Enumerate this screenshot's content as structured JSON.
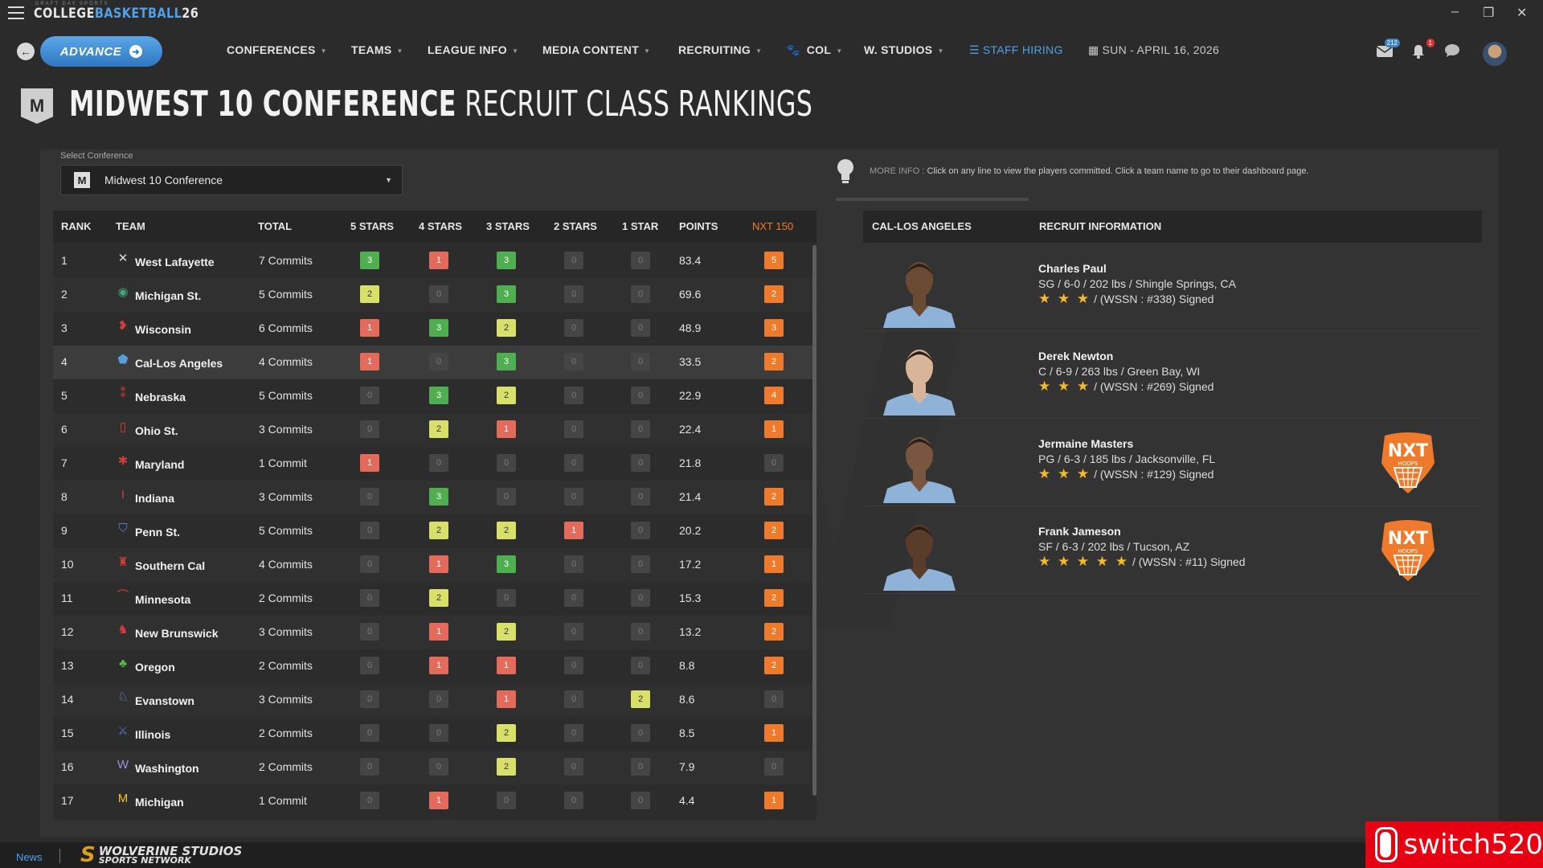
{
  "app": {
    "logo_main": "COLLEGE",
    "logo_accent": "BASKETBALL",
    "logo_year": "26",
    "logo_sub": "DRAFT DAY SPORTS"
  },
  "nav": {
    "advance_label": "ADVANCE",
    "items": [
      "CONFERENCES",
      "TEAMS",
      "LEAGUE INFO",
      "MEDIA CONTENT",
      "RECRUITING",
      "COL",
      "W. STUDIOS"
    ],
    "staff_hiring": "STAFF HIRING",
    "date": "SUN - APRIL 16, 2026",
    "mail_count": "212",
    "notif_count": "1"
  },
  "page": {
    "title_bold": "MIDWEST 10 CONFERENCE",
    "title_light": "RECRUIT CLASS RANKINGS",
    "conf_logo": "M"
  },
  "select": {
    "label": "Select Conference",
    "value": "Midwest 10 Conference"
  },
  "info": {
    "label": "MORE INFO :",
    "text": "Click on any line to view the players committed. Click a team name to go to their dashboard page."
  },
  "table": {
    "headers": [
      "RANK",
      "TEAM",
      "TOTAL",
      "5 STARS",
      "4 STARS",
      "3 STARS",
      "2 STARS",
      "1 STAR",
      "POINTS",
      "NXT 150"
    ],
    "rows": [
      {
        "rank": "1",
        "icon": "✕",
        "icolor": "#d8d8d8",
        "team": "West Lafayette",
        "total": "7 Commits",
        "s5": 3,
        "s4": 1,
        "s3": 3,
        "s2": 0,
        "s1": 0,
        "points": "83.4",
        "nxt": 5
      },
      {
        "rank": "2",
        "icon": "◉",
        "icolor": "#3fa57a",
        "team": "Michigan St.",
        "total": "5 Commits",
        "s5": 2,
        "s4": 0,
        "s3": 3,
        "s2": 0,
        "s1": 0,
        "points": "69.6",
        "nxt": 2
      },
      {
        "rank": "3",
        "icon": "❥",
        "icolor": "#d23b3b",
        "team": "Wisconsin",
        "total": "6 Commits",
        "s5": 1,
        "s4": 3,
        "s3": 2,
        "s2": 0,
        "s1": 0,
        "points": "48.9",
        "nxt": 3
      },
      {
        "rank": "4",
        "icon": "⬟",
        "icolor": "#5a9fdc",
        "team": "Cal-Los Angeles",
        "total": "4 Commits",
        "s5": 1,
        "s4": 0,
        "s3": 3,
        "s2": 0,
        "s1": 0,
        "points": "33.5",
        "nxt": 2
      },
      {
        "rank": "5",
        "icon": "⁑",
        "icolor": "#d23b3b",
        "team": "Nebraska",
        "total": "5 Commits",
        "s5": 0,
        "s4": 3,
        "s3": 2,
        "s2": 0,
        "s1": 0,
        "points": "22.9",
        "nxt": 4
      },
      {
        "rank": "6",
        "icon": "▯",
        "icolor": "#d23b3b",
        "team": "Ohio St.",
        "total": "3 Commits",
        "s5": 0,
        "s4": 2,
        "s3": 1,
        "s2": 0,
        "s1": 0,
        "points": "22.4",
        "nxt": 1
      },
      {
        "rank": "7",
        "icon": "✱",
        "icolor": "#d23b3b",
        "team": "Maryland",
        "total": "1 Commit",
        "s5": 1,
        "s4": 0,
        "s3": 0,
        "s2": 0,
        "s1": 0,
        "points": "21.8",
        "nxt": 0
      },
      {
        "rank": "8",
        "icon": "I",
        "icolor": "#d23b3b",
        "team": "Indiana",
        "total": "3 Commits",
        "s5": 0,
        "s4": 3,
        "s3": 0,
        "s2": 0,
        "s1": 0,
        "points": "21.4",
        "nxt": 2
      },
      {
        "rank": "9",
        "icon": "⛉",
        "icolor": "#4f7fd8",
        "team": "Penn St.",
        "total": "5 Commits",
        "s5": 0,
        "s4": 2,
        "s3": 2,
        "s2": 1,
        "s1": 0,
        "points": "20.2",
        "nxt": 2
      },
      {
        "rank": "10",
        "icon": "♜",
        "icolor": "#d23b3b",
        "team": "Southern Cal",
        "total": "4 Commits",
        "s5": 0,
        "s4": 1,
        "s3": 3,
        "s2": 0,
        "s1": 0,
        "points": "17.2",
        "nxt": 1
      },
      {
        "rank": "11",
        "icon": "⌒",
        "icolor": "#d23b3b",
        "team": "Minnesota",
        "total": "2 Commits",
        "s5": 0,
        "s4": 2,
        "s3": 0,
        "s2": 0,
        "s1": 0,
        "points": "15.3",
        "nxt": 2
      },
      {
        "rank": "12",
        "icon": "♞",
        "icolor": "#d23b3b",
        "team": "New Brunswick",
        "total": "3 Commits",
        "s5": 0,
        "s4": 1,
        "s3": 2,
        "s2": 0,
        "s1": 0,
        "points": "13.2",
        "nxt": 2
      },
      {
        "rank": "13",
        "icon": "♣",
        "icolor": "#5cb34f",
        "team": "Oregon",
        "total": "2 Commits",
        "s5": 0,
        "s4": 1,
        "s3": 1,
        "s2": 0,
        "s1": 0,
        "points": "8.8",
        "nxt": 2
      },
      {
        "rank": "14",
        "icon": "♘",
        "icolor": "#7d8fd8",
        "team": "Evanstown",
        "total": "3 Commits",
        "s5": 0,
        "s4": 0,
        "s3": 1,
        "s2": 0,
        "s1": 2,
        "points": "8.6",
        "nxt": 0
      },
      {
        "rank": "15",
        "icon": "⚔",
        "icolor": "#5b6fc8",
        "team": "Illinois",
        "total": "2 Commits",
        "s5": 0,
        "s4": 0,
        "s3": 2,
        "s2": 0,
        "s1": 0,
        "points": "8.5",
        "nxt": 1
      },
      {
        "rank": "16",
        "icon": "W",
        "icolor": "#9b8fd8",
        "team": "Washington",
        "total": "2 Commits",
        "s5": 0,
        "s4": 0,
        "s3": 2,
        "s2": 0,
        "s1": 0,
        "points": "7.9",
        "nxt": 0
      },
      {
        "rank": "17",
        "icon": "M",
        "icolor": "#f2c12e",
        "team": "Michigan",
        "total": "1 Commit",
        "s5": 0,
        "s4": 1,
        "s3": 0,
        "s2": 0,
        "s1": 0,
        "points": "4.4",
        "nxt": 1
      }
    ]
  },
  "recruits_panel": {
    "team_header": "CAL-LOS ANGELES",
    "info_header": "RECRUIT INFORMATION",
    "recruits": [
      {
        "name": "Charles Paul",
        "info": "SG / 6-0 / 202 lbs / Shingle Springs, CA",
        "stars": "★ ★ ★",
        "rank": "/ (WSSN : #338) Signed",
        "nxt": false,
        "skin": "#6b4a34"
      },
      {
        "name": "Derek Newton",
        "info": "C / 6-9 / 263 lbs / Green Bay, WI",
        "stars": "★ ★ ★",
        "rank": "/ (WSSN : #269) Signed",
        "nxt": false,
        "skin": "#d8b49a"
      },
      {
        "name": "Jermaine Masters",
        "info": "PG / 6-3 / 185 lbs / Jacksonville, FL",
        "stars": "★ ★ ★",
        "rank": "/ (WSSN : #129) Signed",
        "nxt": true,
        "skin": "#7a5640"
      },
      {
        "name": "Frank Jameson",
        "info": "SF / 6-3 / 202 lbs / Tucson, AZ",
        "stars": "★ ★ ★ ★ ★",
        "rank": "/ (WSSN : #11) Signed",
        "nxt": true,
        "skin": "#5a3c2a"
      }
    ],
    "nxt_label": "NXT",
    "nxt_sub": "HOOPS"
  },
  "bottom": {
    "news": "News",
    "network_top": "WOLVERINE STUDIOS",
    "network_bottom": "SPORTS NETWORK",
    "watermark": "switch520"
  },
  "colors": {
    "accent": "#4fa0e6",
    "orange": "#ef7a2c",
    "green": "#4fae4f",
    "red": "#e46b5c",
    "yellow": "#d8e06a"
  }
}
